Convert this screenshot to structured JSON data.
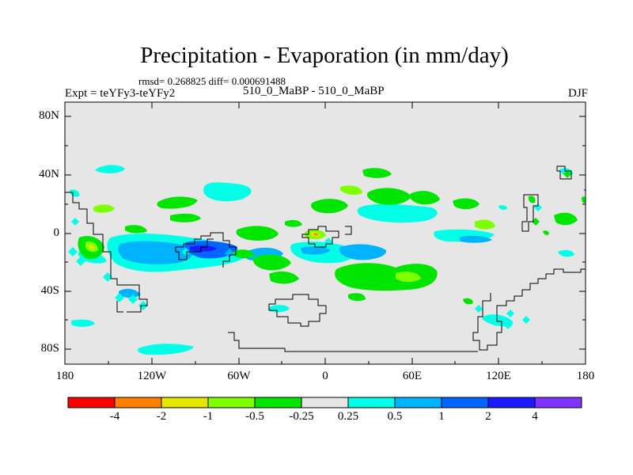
{
  "title": "Precipitation - Evaporation (in mm/day)",
  "stats_line": "rmsd= 0.268825 diff= 0.000691488",
  "experiment_label": "Expt = teYFy3-teYFy2",
  "center_label": "510_0_MaBP - 510_0_MaBP",
  "season": "DJF",
  "y_axis_labels": [
    "80N",
    "40N",
    "0",
    "40S",
    "80S"
  ],
  "x_axis_labels": [
    "180",
    "120W",
    "60W",
    "0",
    "60E",
    "120E",
    "180"
  ],
  "colorbar": {
    "colors": [
      "#ff0000",
      "#ff7f00",
      "#e6e600",
      "#7fff00",
      "#00e600",
      "#e6e6e6",
      "#00ffe6",
      "#00b3ff",
      "#0066ff",
      "#1a1aff",
      "#7f33ff"
    ],
    "labels": [
      "-4",
      "-2",
      "-1",
      "-0.5",
      "-0.25",
      "0.25",
      "0.5",
      "1",
      "2",
      "4"
    ]
  },
  "map": {
    "background_color": "#e6e6e6",
    "lon_range": [
      -180,
      180
    ],
    "lat_range": [
      -90,
      90
    ]
  }
}
